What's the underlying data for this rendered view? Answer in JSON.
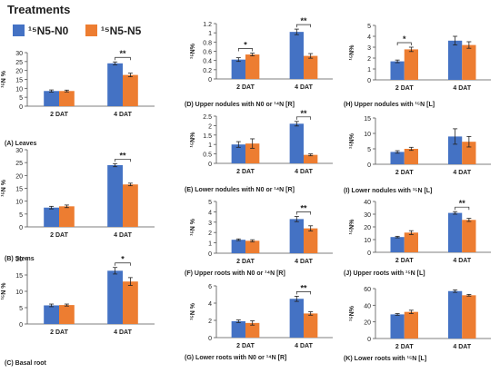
{
  "heading": "Treatments",
  "legend": {
    "items": [
      {
        "label": "¹⁵N5-N0",
        "color": "#4472C4"
      },
      {
        "label": "¹⁵N5-N5",
        "color": "#ED7D31"
      }
    ]
  },
  "colors": {
    "n0": "#4472C4",
    "n5": "#ED7D31",
    "axis": "#555555",
    "error": "#222222"
  },
  "chart_data": [
    {
      "id": "A",
      "type": "bar",
      "caption": "(A)  Leaves",
      "ylabel": "¹⁵N %",
      "ylim": [
        0,
        30
      ],
      "yticks": [
        0,
        5,
        10,
        15,
        20,
        25,
        30
      ],
      "categories": [
        "2 DAT",
        "4 DAT"
      ],
      "series": [
        {
          "name": "¹⁵N5-N0",
          "values": [
            8.5,
            24.0
          ],
          "errors": [
            0.6,
            0.8
          ]
        },
        {
          "name": "¹⁵N5-N5",
          "values": [
            8.5,
            17.5
          ],
          "errors": [
            0.5,
            1.0
          ]
        }
      ],
      "significance": [
        {
          "category": "4 DAT",
          "label": "**"
        }
      ]
    },
    {
      "id": "B",
      "type": "bar",
      "caption": "(B)  Stems",
      "ylabel": "¹⁵N %",
      "ylim": [
        0,
        30
      ],
      "yticks": [
        0,
        5,
        10,
        15,
        20,
        25,
        30
      ],
      "categories": [
        "2 DAT",
        "4 DAT"
      ],
      "series": [
        {
          "name": "¹⁵N5-N0",
          "values": [
            7.5,
            24.0
          ],
          "errors": [
            0.5,
            0.6
          ]
        },
        {
          "name": "¹⁵N5-N5",
          "values": [
            8.0,
            16.5
          ],
          "errors": [
            0.5,
            0.5
          ]
        }
      ],
      "significance": [
        {
          "category": "4 DAT",
          "label": "**"
        }
      ]
    },
    {
      "id": "C",
      "type": "bar",
      "caption": "(C)  Basal root",
      "ylabel": "¹⁵N %",
      "ylim": [
        0,
        20
      ],
      "yticks": [
        0,
        5,
        10,
        15,
        20
      ],
      "categories": [
        "2 DAT",
        "4 DAT"
      ],
      "series": [
        {
          "name": "¹⁵N5-N0",
          "values": [
            5.7,
            16.3
          ],
          "errors": [
            0.4,
            1.0
          ]
        },
        {
          "name": "¹⁵N5-N5",
          "values": [
            5.8,
            13.0
          ],
          "errors": [
            0.3,
            1.2
          ]
        }
      ],
      "significance": [
        {
          "category": "4 DAT",
          "label": "*"
        }
      ]
    },
    {
      "id": "D",
      "type": "bar",
      "caption": "(D)  Upper nodules with N0 or  ¹⁴N [R]",
      "ylabel": "¹⁵N%",
      "ylim": [
        0,
        1.2
      ],
      "yticks": [
        0,
        0.2,
        0.4,
        0.6,
        0.8,
        1,
        1.2
      ],
      "categories": [
        "2 DAT",
        "4 DAT"
      ],
      "series": [
        {
          "name": "¹⁵N5-N0",
          "values": [
            0.42,
            1.02
          ],
          "errors": [
            0.04,
            0.06
          ]
        },
        {
          "name": "¹⁵N5-N5",
          "values": [
            0.53,
            0.5
          ],
          "errors": [
            0.03,
            0.05
          ]
        }
      ],
      "significance": [
        {
          "category": "2 DAT",
          "label": "*"
        },
        {
          "category": "4 DAT",
          "label": "**"
        }
      ]
    },
    {
      "id": "E",
      "type": "bar",
      "caption": "(E)  Lower nodules with N0 or  ¹⁴N [R]",
      "ylabel": "¹⁵N%",
      "ylim": [
        0,
        2.5
      ],
      "yticks": [
        0,
        0.5,
        1,
        1.5,
        2,
        2.5
      ],
      "categories": [
        "2 DAT",
        "4 DAT"
      ],
      "series": [
        {
          "name": "¹⁵N5-N0",
          "values": [
            1.0,
            2.1
          ],
          "errors": [
            0.15,
            0.12
          ]
        },
        {
          "name": "¹⁵N5-N5",
          "values": [
            1.05,
            0.45
          ],
          "errors": [
            0.25,
            0.05
          ]
        }
      ],
      "significance": [
        {
          "category": "4 DAT",
          "label": "**"
        }
      ]
    },
    {
      "id": "F",
      "type": "bar",
      "caption": "(F)  Upper roots with N0 or  ¹⁴N [R]",
      "ylabel": "¹⁵N %",
      "ylim": [
        0,
        5
      ],
      "yticks": [
        0,
        1,
        2,
        3,
        4,
        5
      ],
      "categories": [
        "2 DAT",
        "4 DAT"
      ],
      "series": [
        {
          "name": "¹⁵N5-N0",
          "values": [
            1.3,
            3.3
          ],
          "errors": [
            0.08,
            0.25
          ]
        },
        {
          "name": "¹⁵N5-N5",
          "values": [
            1.2,
            2.4
          ],
          "errors": [
            0.1,
            0.25
          ]
        }
      ],
      "significance": [
        {
          "category": "4 DAT",
          "label": "**"
        }
      ]
    },
    {
      "id": "G",
      "type": "bar",
      "caption": "(G)  Lower roots with N0 or  ¹⁴N [R]",
      "ylabel": "¹⁵N %",
      "ylim": [
        0,
        6
      ],
      "yticks": [
        0,
        2,
        4,
        6
      ],
      "categories": [
        "2 DAT",
        "4 DAT"
      ],
      "series": [
        {
          "name": "¹⁵N5-N0",
          "values": [
            1.9,
            4.5
          ],
          "errors": [
            0.15,
            0.3
          ]
        },
        {
          "name": "¹⁵N5-N5",
          "values": [
            1.7,
            2.8
          ],
          "errors": [
            0.25,
            0.2
          ]
        }
      ],
      "significance": [
        {
          "category": "4 DAT",
          "label": "**"
        }
      ]
    },
    {
      "id": "H",
      "type": "bar",
      "caption": "(H)  Upper nodules with  ¹⁵N [L]",
      "ylabel": "¹⁵N%",
      "ylim": [
        0,
        5
      ],
      "yticks": [
        0,
        1,
        2,
        3,
        4,
        5
      ],
      "categories": [
        "2 DAT",
        "4 DAT"
      ],
      "series": [
        {
          "name": "¹⁵N5-N0",
          "values": [
            1.7,
            3.6
          ],
          "errors": [
            0.12,
            0.4
          ]
        },
        {
          "name": "¹⁵N5-N5",
          "values": [
            2.8,
            3.2
          ],
          "errors": [
            0.2,
            0.3
          ]
        }
      ],
      "significance": [
        {
          "category": "2 DAT",
          "label": "*"
        }
      ]
    },
    {
      "id": "I",
      "type": "bar",
      "caption": "(I)  Lower nodules with  ¹⁵N [L]",
      "ylabel": "¹⁵N%",
      "ylim": [
        0,
        15
      ],
      "yticks": [
        0,
        5,
        10,
        15
      ],
      "categories": [
        "2 DAT",
        "4 DAT"
      ],
      "series": [
        {
          "name": "¹⁵N5-N0",
          "values": [
            4.0,
            9.0
          ],
          "errors": [
            0.4,
            2.5
          ]
        },
        {
          "name": "¹⁵N5-N5",
          "values": [
            5.0,
            7.3
          ],
          "errors": [
            0.5,
            1.7
          ]
        }
      ],
      "significance": []
    },
    {
      "id": "J",
      "type": "bar",
      "caption": "(J)  Upper roots with  ¹⁵N [L]",
      "ylabel": "¹⁵N%",
      "ylim": [
        0,
        40
      ],
      "yticks": [
        0,
        10,
        20,
        30,
        40
      ],
      "categories": [
        "2 DAT",
        "4 DAT"
      ],
      "series": [
        {
          "name": "¹⁵N5-N0",
          "values": [
            12.0,
            31.0
          ],
          "errors": [
            0.6,
            1.0
          ]
        },
        {
          "name": "¹⁵N5-N5",
          "values": [
            15.5,
            25.5
          ],
          "errors": [
            1.5,
            1.2
          ]
        }
      ],
      "significance": [
        {
          "category": "4 DAT",
          "label": "**"
        }
      ]
    },
    {
      "id": "K",
      "type": "bar",
      "caption": "(K)  Lower roots with  ¹⁵N [L]",
      "ylabel": "¹⁵N%",
      "ylim": [
        0,
        60
      ],
      "yticks": [
        0,
        20,
        40,
        60
      ],
      "categories": [
        "2 DAT",
        "4 DAT"
      ],
      "series": [
        {
          "name": "¹⁵N5-N0",
          "values": [
            29.0,
            57.0
          ],
          "errors": [
            1.0,
            1.5
          ]
        },
        {
          "name": "¹⁵N5-N5",
          "values": [
            32.0,
            52.0
          ],
          "errors": [
            2.0,
            1.0
          ]
        }
      ],
      "significance": []
    }
  ]
}
